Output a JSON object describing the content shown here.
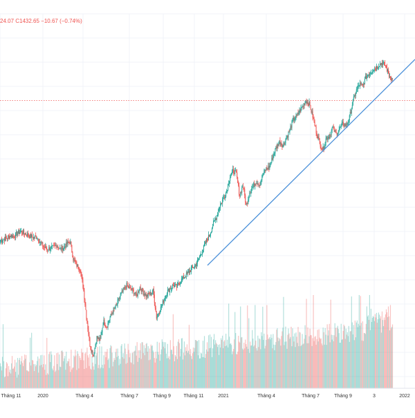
{
  "ohlc_readout": "24.07  C1432.65  −10.67 (−0.74%)",
  "colors": {
    "up": "#26a69a",
    "down": "#ef5350",
    "trendline": "#4a90d9",
    "price_line": "#ef5350",
    "grid": "#f0f3f8",
    "axis_text": "#333333",
    "background": "#ffffff"
  },
  "chart_data": {
    "type": "candlestick",
    "x_ticks": [
      "Tháng 11",
      "2020",
      "Tháng 4",
      "Tháng 7",
      "Tháng 9",
      "Tháng 11",
      "2021",
      "Tháng 4",
      "Tháng 7",
      "Tháng 9",
      "3",
      "2022"
    ],
    "last_close": 1432.65,
    "change": -10.67,
    "change_pct": -0.74,
    "price_series_estimated": [
      985,
      988,
      992,
      998,
      996,
      1004,
      1010,
      1006,
      1002,
      997,
      993,
      995,
      980,
      968,
      960,
      963,
      966,
      972,
      961,
      965,
      975,
      982,
      930,
      915,
      905,
      850,
      765,
      690,
      665,
      715,
      705,
      760,
      745,
      770,
      790,
      805,
      830,
      845,
      860,
      850,
      845,
      830,
      855,
      840,
      830,
      835,
      845,
      770,
      790,
      815,
      840,
      850,
      860,
      855,
      870,
      880,
      890,
      900,
      910,
      920,
      940,
      960,
      985,
      1000,
      1030,
      1050,
      1080,
      1100,
      1120,
      1160,
      1180,
      1170,
      1110,
      1140,
      1080,
      1120,
      1135,
      1150,
      1140,
      1170,
      1185,
      1190,
      1220,
      1245,
      1260,
      1250,
      1270,
      1290,
      1320,
      1330,
      1345,
      1360,
      1375,
      1365,
      1330,
      1290,
      1260,
      1235,
      1270,
      1275,
      1300,
      1280,
      1295,
      1310,
      1305,
      1325,
      1370,
      1400,
      1420,
      1415,
      1440,
      1450,
      1460,
      1465,
      1475,
      1480,
      1470,
      1443,
      1433
    ],
    "notes": "Daily candles (approx. Oct 2019 – Jan 2022) with volume histogram, ascending trendline and horizontal last-price line."
  }
}
